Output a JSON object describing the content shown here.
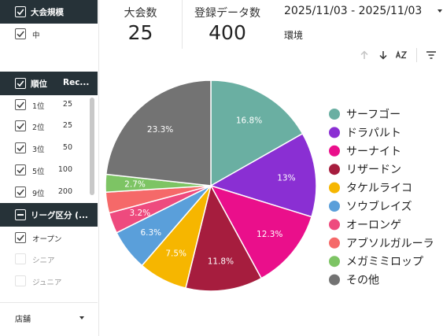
{
  "filters": {
    "scale": {
      "title": "大会規模",
      "items": [
        {
          "label": "中",
          "checked": true
        }
      ]
    },
    "rank": {
      "title": "順位",
      "column": "Rec...",
      "items": [
        {
          "label": "1位",
          "count": "25",
          "checked": true
        },
        {
          "label": "2位",
          "count": "25",
          "checked": true
        },
        {
          "label": "3位",
          "count": "50",
          "checked": true
        },
        {
          "label": "5位",
          "count": "100",
          "checked": true
        },
        {
          "label": "9位",
          "count": "200",
          "checked": true
        }
      ]
    },
    "league": {
      "title": "リーグ区分 (...",
      "items": [
        {
          "label": "オープン",
          "checked": true
        },
        {
          "label": "シニア",
          "checked": false
        },
        {
          "label": "ジュニア",
          "checked": false
        }
      ]
    },
    "shop": {
      "label": "店舗"
    }
  },
  "scorecards": {
    "tournaments": {
      "title": "大会数",
      "value": "25"
    },
    "records": {
      "title": "登録データ数",
      "value": "400"
    }
  },
  "date_range": "2025/11/03 - 2025/11/03",
  "environment_label": "環境",
  "toolbar_icons": [
    "arrow-up-icon",
    "arrow-down-icon",
    "sort-az-icon",
    "filter-icon"
  ],
  "chart_data": {
    "type": "pie",
    "title": "",
    "slices": [
      {
        "label": "サーフゴー",
        "value": 16.8,
        "value_label": "16.8%",
        "color": "#6aafa2"
      },
      {
        "label": "ドラパルト",
        "value": 13.0,
        "value_label": "13%",
        "color": "#8a2fd3"
      },
      {
        "label": "サーナイト",
        "value": 12.3,
        "value_label": "12.3%",
        "color": "#ea0f8b"
      },
      {
        "label": "リザードン",
        "value": 11.8,
        "value_label": "11.8%",
        "color": "#a61d3e"
      },
      {
        "label": "タケルライコ",
        "value": 7.5,
        "value_label": "7.5%",
        "color": "#f6b600"
      },
      {
        "label": "ソウブレイズ",
        "value": 6.3,
        "value_label": "6.3%",
        "color": "#5a9fda"
      },
      {
        "label": "オーロンゲ",
        "value": 3.2,
        "value_label": "3.2%",
        "color": "#ee4a7e"
      },
      {
        "label": "アブソルガルーラ",
        "value": 3.2,
        "value_label": "",
        "color": "#f56969"
      },
      {
        "label": "メガミミロップ",
        "value": 2.7,
        "value_label": "2.7%",
        "color": "#7dc464"
      },
      {
        "label": "その他",
        "value": 23.3,
        "value_label": "23.3%",
        "color": "#737373"
      }
    ],
    "legend_position": "right"
  }
}
